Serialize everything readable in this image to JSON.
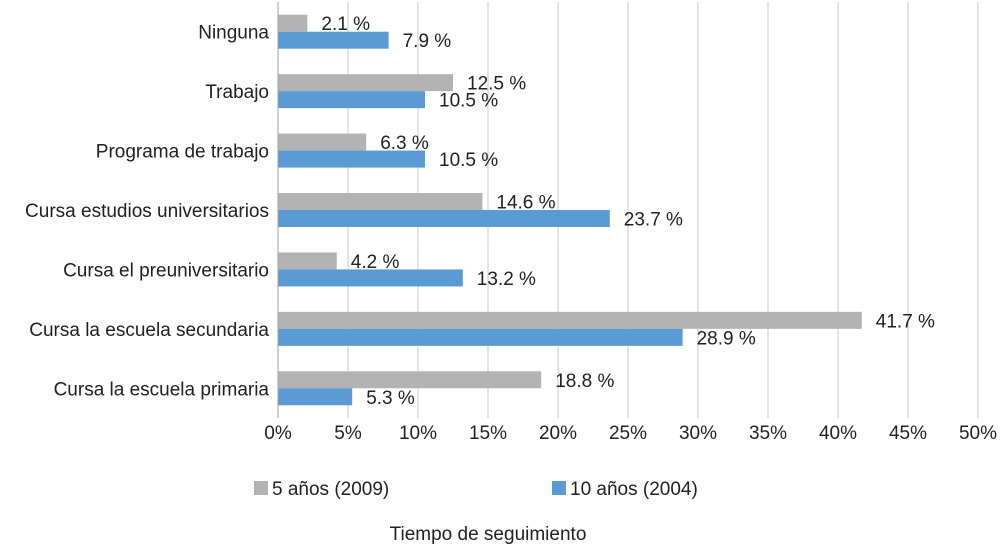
{
  "chart_data": {
    "type": "bar",
    "orientation": "horizontal",
    "categories": [
      "Ninguna",
      "Trabajo",
      "Programa de trabajo",
      "Cursa estudios universitarios",
      "Cursa el preuniversitario",
      "Cursa la escuela secundaria",
      "Cursa la escuela primaria"
    ],
    "series": [
      {
        "name": "5 años (2009)",
        "color": "#b3b3b3",
        "values": [
          2.1,
          12.5,
          6.3,
          14.6,
          4.2,
          41.7,
          18.8
        ],
        "labels": [
          "2.1 %",
          "12.5 %",
          "6.3 %",
          "14.6 %",
          "4.2 %",
          "41.7 %",
          "18.8 %"
        ]
      },
      {
        "name": "10 años (2004)",
        "color": "#5b9bd5",
        "values": [
          7.9,
          10.5,
          10.5,
          23.7,
          13.2,
          28.9,
          5.3
        ],
        "labels": [
          "7.9 %",
          "10.5 %",
          "10.5 %",
          "23.7 %",
          "13.2 %",
          "28.9 %",
          "5.3 %"
        ]
      }
    ],
    "xlim": [
      0,
      50
    ],
    "xticks": [
      0,
      5,
      10,
      15,
      20,
      25,
      30,
      35,
      40,
      45,
      50
    ],
    "xtick_labels": [
      "0%",
      "5%",
      "10%",
      "15%",
      "20%",
      "25%",
      "30%",
      "35%",
      "40%",
      "45%",
      "50%"
    ],
    "xlabel": "Tiempo de seguimiento",
    "ylabel": "",
    "title": "",
    "grid": "vertical",
    "legend_position": "bottom"
  }
}
